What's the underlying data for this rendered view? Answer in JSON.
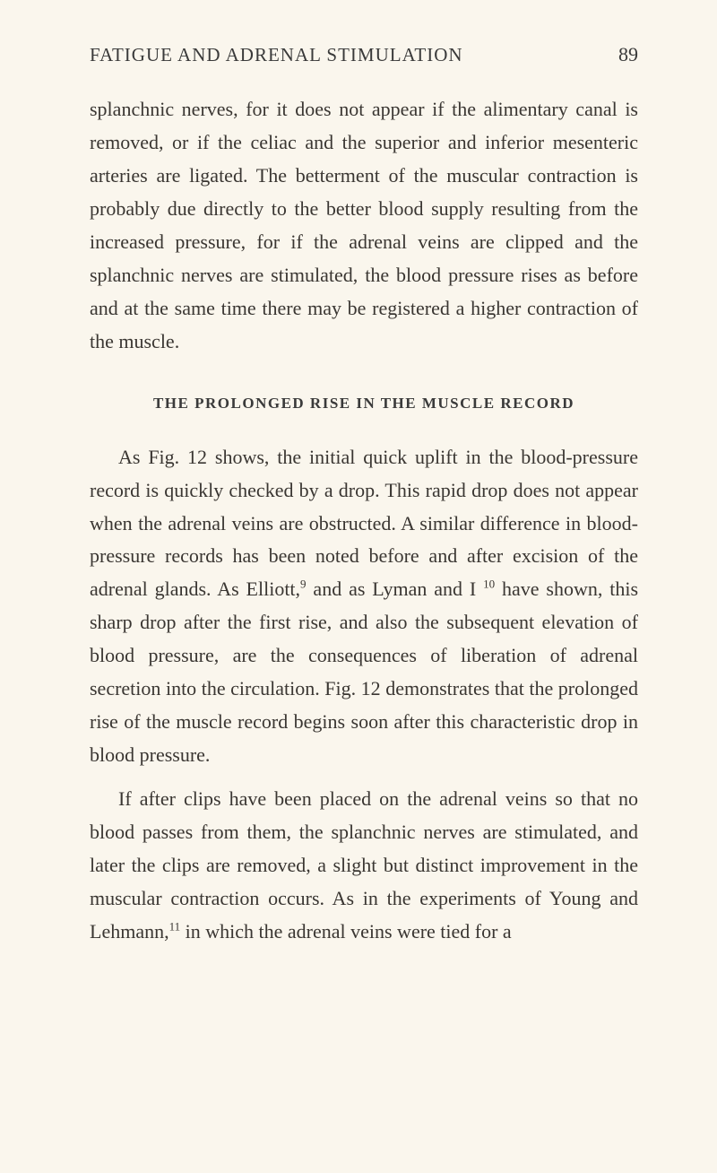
{
  "header": {
    "title": "FATIGUE AND ADRENAL STIMULATION",
    "page_number": "89"
  },
  "paragraphs": {
    "p1": "splanchnic nerves, for it does not appear if the alimen­tary canal is removed, or if the celiac and the superior and inferior mesenteric arteries are ligated. The bet­terment of the muscular contraction is probably due directly to the better blood supply resulting from the increased pressure, for if the adrenal veins are clipped and the splanchnic nerves are stimulated, the blood pressure rises as before and at the same time there may be registered a higher contraction of the muscle."
  },
  "section_heading": "THE PROLONGED RISE IN THE MUSCLE RECORD",
  "p2_parts": {
    "a": "As Fig. 12 shows, the initial quick uplift in the blood-pressure record is quickly checked by a drop. This rapid drop does not appear when the adrenal veins are obstructed. A similar difference in blood-pressure records has been noted before and after excision of the adrenal glands. As Elliott,",
    "sup1": "9",
    "b": " and as Lyman and I ",
    "sup2": "10",
    "c": " have shown, this sharp drop after the first rise, and also the subsequent elevation of blood pressure, are the consequences of liberation of adrenal secretion into the circulation. Fig. 12 demonstrates that the prolonged rise of the muscle record begins soon after this char­acteristic drop in blood pressure."
  },
  "p3_parts": {
    "a": "If after clips have been placed on the adrenal veins so that no blood passes from them, the splanchnic nerves are stimulated, and later the clips are removed, a slight but distinct improvement in the muscular con­traction occurs. As in the experiments of Young and Lehmann,",
    "sup1": "11",
    "b": " in which the adrenal veins were tied for a"
  }
}
